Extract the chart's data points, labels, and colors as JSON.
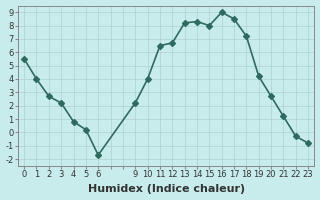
{
  "x": [
    0,
    1,
    2,
    3,
    4,
    5,
    6,
    9,
    10,
    11,
    12,
    13,
    14,
    15,
    16,
    17,
    18,
    19,
    20,
    21,
    22,
    23
  ],
  "y": [
    5.5,
    4.0,
    2.7,
    2.2,
    0.8,
    0.2,
    -1.7,
    2.2,
    4.0,
    6.5,
    6.7,
    8.2,
    8.3,
    8.0,
    9.0,
    8.5,
    7.2,
    4.2,
    2.7,
    1.2,
    -0.3,
    -0.8
  ],
  "line_color": "#2e6b5e",
  "bg_color": "#c8ecec",
  "grid_color": "#b0d0d0",
  "xlabel": "Humidex (Indice chaleur)",
  "xlim": [
    -0.5,
    23.5
  ],
  "ylim": [
    -2.5,
    9.5
  ],
  "yticks": [
    -2,
    -1,
    0,
    1,
    2,
    3,
    4,
    5,
    6,
    7,
    8,
    9
  ],
  "xticks_all": [
    0,
    1,
    2,
    3,
    4,
    5,
    6,
    7,
    8,
    9,
    10,
    11,
    12,
    13,
    14,
    15,
    16,
    17,
    18,
    19,
    20,
    21,
    22,
    23
  ],
  "xtick_labels": [
    "0",
    "1",
    "2",
    "3",
    "4",
    "5",
    "6",
    "",
    "",
    "9",
    "10",
    "11",
    "12",
    "13",
    "14",
    "15",
    "16",
    "17",
    "18",
    "19",
    "20",
    "21",
    "22",
    "23"
  ],
  "marker": "D",
  "markersize": 3,
  "linewidth": 1.2,
  "xlabel_fontsize": 8,
  "tick_fontsize": 6
}
